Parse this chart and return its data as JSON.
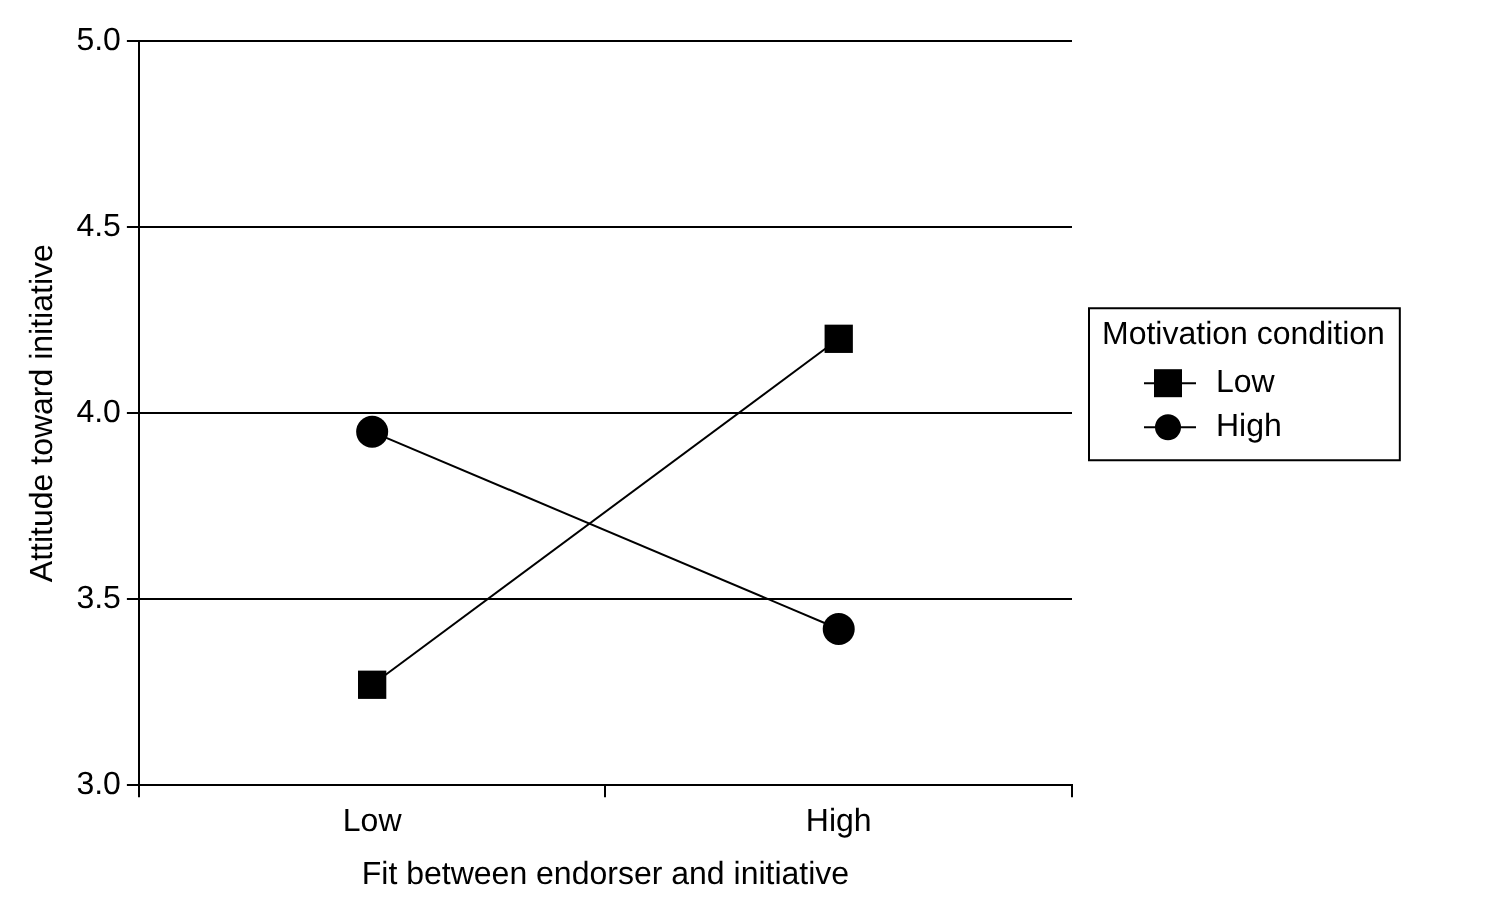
{
  "chart_data": {
    "type": "line",
    "xlabel": "Fit between endorser and initiative",
    "ylabel": "Attitude toward initiative",
    "legend_title": "Motivation condition",
    "categories": [
      "Low",
      "High"
    ],
    "series": [
      {
        "name": "Low",
        "color": "#000000",
        "marker": "square",
        "values": [
          3.27,
          4.2
        ]
      },
      {
        "name": "High",
        "color": "#000000",
        "marker": "circle",
        "values": [
          3.95,
          3.42
        ]
      }
    ],
    "ylim": [
      3.0,
      5.0
    ],
    "yticks": [
      {
        "value": 3,
        "label": "3.0"
      },
      {
        "value": 3.5,
        "label": "3.5"
      },
      {
        "value": 4,
        "label": "4.0"
      },
      {
        "value": 4.5,
        "label": "4.5"
      },
      {
        "value": 5,
        "label": "5.0"
      }
    ],
    "grid": "y",
    "legend": "right",
    "line_style": "solid"
  }
}
